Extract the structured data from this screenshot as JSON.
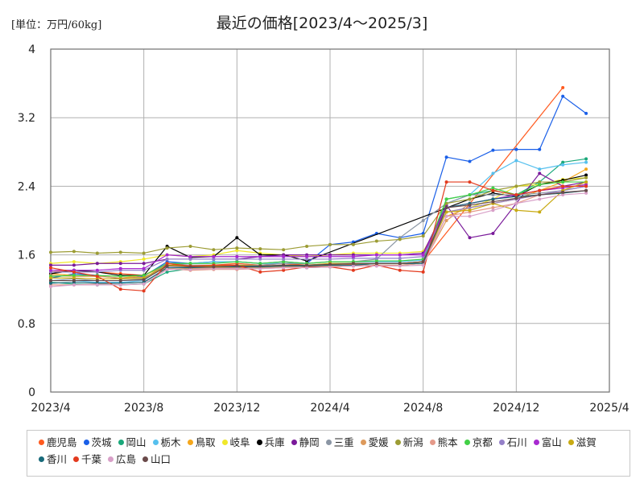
{
  "header": {
    "unit": "[単位：万円/60kg]",
    "title": "最近の価格[2023/4～2025/3]"
  },
  "chart_data": {
    "type": "line",
    "title": "最近の価格[2023/4～2025/3]",
    "unit_label": "[単位：万円/60kg]",
    "x": [
      "2023/4",
      "2023/5",
      "2023/6",
      "2023/7",
      "2023/8",
      "2023/9",
      "2023/10",
      "2023/11",
      "2023/12",
      "2024/1",
      "2024/2",
      "2024/3",
      "2024/4",
      "2024/5",
      "2024/6",
      "2024/7",
      "2024/8",
      "2024/9",
      "2024/10",
      "2024/11",
      "2024/12",
      "2025/1",
      "2025/2",
      "2025/3"
    ],
    "xticks": [
      "2023/4",
      "2023/8",
      "2023/12",
      "2024/4",
      "2024/8",
      "2024/12",
      "2025/4"
    ],
    "ylim": [
      0,
      4
    ],
    "yticks": [
      0,
      0.8,
      1.6,
      2.4,
      3.2,
      4
    ],
    "grid": true,
    "legend": "bottom",
    "series": [
      {
        "name": "鹿児島",
        "color": "#ff5a1f",
        "values": [
          1.4,
          1.42,
          1.4,
          1.38,
          1.36,
          1.5,
          1.46,
          1.48,
          1.5,
          1.48,
          1.5,
          1.48,
          1.48,
          1.49,
          1.5,
          1.5,
          1.52,
          null,
          null,
          null,
          null,
          null,
          3.55,
          null
        ]
      },
      {
        "name": "茨城",
        "color": "#1a5fe8",
        "values": [
          1.33,
          1.38,
          1.36,
          1.32,
          1.35,
          1.52,
          1.5,
          1.52,
          1.52,
          1.5,
          1.52,
          1.5,
          1.72,
          1.75,
          1.85,
          1.8,
          1.85,
          2.74,
          2.69,
          2.82,
          2.83,
          2.83,
          3.45,
          3.25
        ]
      },
      {
        "name": "岡山",
        "color": "#1aa87a",
        "values": [
          1.28,
          1.26,
          1.25,
          1.25,
          1.26,
          1.4,
          1.44,
          1.45,
          1.45,
          1.45,
          1.46,
          1.45,
          1.46,
          1.47,
          1.48,
          1.48,
          1.5,
          2.25,
          2.3,
          2.35,
          2.3,
          2.45,
          2.68,
          2.72
        ]
      },
      {
        "name": "栃木",
        "color": "#56c0ee",
        "values": [
          1.3,
          1.3,
          1.28,
          1.28,
          1.3,
          1.5,
          1.5,
          1.52,
          1.52,
          1.5,
          1.5,
          1.5,
          1.52,
          1.52,
          1.52,
          1.52,
          1.54,
          2.2,
          2.3,
          2.55,
          2.7,
          2.6,
          2.65,
          2.68
        ]
      },
      {
        "name": "鳥取",
        "color": "#f5a71c",
        "values": [
          1.38,
          1.36,
          1.35,
          1.33,
          1.36,
          1.48,
          1.46,
          1.46,
          1.46,
          1.46,
          1.47,
          1.47,
          1.48,
          1.48,
          1.5,
          1.5,
          1.52,
          2.05,
          2.15,
          2.2,
          2.25,
          2.35,
          2.45,
          2.6
        ]
      },
      {
        "name": "岐阜",
        "color": "#f0e82a",
        "values": [
          1.5,
          1.52,
          1.5,
          1.52,
          1.55,
          1.6,
          1.58,
          1.6,
          1.65,
          1.62,
          1.6,
          1.58,
          1.6,
          1.62,
          1.62,
          1.62,
          1.64,
          2.1,
          2.15,
          2.25,
          2.4,
          2.42,
          2.48,
          2.5
        ]
      },
      {
        "name": "兵庫",
        "color": "#000000",
        "values": [
          1.38,
          1.42,
          1.4,
          1.36,
          1.36,
          1.7,
          1.57,
          1.58,
          1.8,
          1.6,
          1.6,
          1.53,
          null,
          null,
          null,
          null,
          null,
          null,
          2.25,
          2.32,
          2.28,
          2.42,
          2.47,
          2.53
        ]
      },
      {
        "name": "静岡",
        "color": "#7a1a9a",
        "values": [
          1.48,
          1.48,
          1.5,
          1.5,
          1.5,
          1.55,
          1.55,
          1.55,
          1.55,
          1.58,
          1.6,
          1.6,
          1.6,
          1.6,
          1.6,
          1.6,
          1.62,
          2.18,
          1.8,
          1.85,
          2.2,
          2.55,
          2.4,
          2.45
        ]
      },
      {
        "name": "三重",
        "color": "#8b96a4",
        "values": [
          1.3,
          1.32,
          1.3,
          1.3,
          1.32,
          1.5,
          1.48,
          1.48,
          1.48,
          1.48,
          1.5,
          1.5,
          1.52,
          1.52,
          1.55,
          1.8,
          2.0,
          2.2,
          2.3,
          2.3,
          2.3,
          2.32,
          2.35,
          2.4
        ]
      },
      {
        "name": "愛媛",
        "color": "#dd9a5c",
        "values": [
          1.36,
          1.35,
          1.35,
          1.33,
          1.34,
          1.45,
          1.44,
          1.45,
          1.45,
          1.45,
          1.46,
          1.46,
          1.47,
          1.48,
          1.5,
          1.5,
          1.5,
          2.0,
          2.2,
          2.25,
          2.3,
          2.35,
          2.38,
          2.42
        ]
      },
      {
        "name": "新潟",
        "color": "#9c9c34",
        "values": [
          1.63,
          1.64,
          1.62,
          1.63,
          1.62,
          1.68,
          1.7,
          1.66,
          1.68,
          1.67,
          1.66,
          1.7,
          1.72,
          1.72,
          1.76,
          1.78,
          1.82,
          2.2,
          2.25,
          2.35,
          2.4,
          2.45,
          2.45,
          2.5
        ]
      },
      {
        "name": "熊本",
        "color": "#e59a8a",
        "values": [
          1.25,
          1.25,
          1.26,
          1.27,
          1.28,
          1.44,
          1.42,
          1.43,
          1.43,
          1.44,
          1.45,
          1.46,
          1.46,
          1.47,
          1.48,
          1.48,
          1.5,
          2.05,
          2.1,
          2.15,
          2.2,
          2.3,
          2.32,
          2.35
        ]
      },
      {
        "name": "京都",
        "color": "#42d046",
        "values": [
          1.35,
          1.36,
          1.36,
          1.35,
          1.36,
          1.5,
          1.5,
          1.5,
          1.52,
          1.5,
          1.52,
          1.5,
          1.52,
          1.52,
          1.53,
          1.53,
          1.55,
          2.25,
          2.3,
          2.38,
          2.3,
          2.42,
          2.45,
          2.45
        ]
      },
      {
        "name": "石川",
        "color": "#9480c8",
        "values": [
          1.4,
          1.4,
          1.4,
          1.42,
          1.42,
          1.55,
          1.55,
          1.55,
          1.55,
          1.55,
          1.55,
          1.55,
          1.55,
          1.56,
          1.56,
          1.56,
          1.58,
          2.1,
          2.15,
          2.2,
          2.25,
          2.3,
          2.35,
          2.4
        ]
      },
      {
        "name": "富山",
        "color": "#a82ad0",
        "values": [
          1.42,
          1.42,
          1.42,
          1.44,
          1.44,
          1.6,
          1.58,
          1.58,
          1.58,
          1.58,
          1.58,
          1.58,
          1.58,
          1.58,
          1.6,
          1.6,
          1.6,
          2.15,
          2.2,
          2.25,
          2.3,
          2.35,
          2.38,
          2.42
        ]
      },
      {
        "name": "滋賀",
        "color": "#c8aa12",
        "values": [
          1.33,
          1.33,
          1.32,
          1.32,
          1.33,
          1.48,
          1.47,
          1.47,
          1.48,
          1.47,
          1.48,
          1.48,
          1.5,
          1.5,
          1.5,
          1.5,
          1.52,
          2.1,
          2.12,
          2.2,
          2.12,
          2.1,
          2.35,
          2.45
        ]
      },
      {
        "name": "香川",
        "color": "#186a7a",
        "values": [
          1.27,
          1.28,
          1.27,
          1.27,
          1.28,
          1.45,
          1.45,
          1.46,
          1.46,
          1.46,
          1.47,
          1.47,
          1.48,
          1.48,
          1.5,
          1.5,
          1.5,
          2.15,
          2.2,
          2.25,
          2.28,
          2.3,
          2.32,
          2.35
        ]
      },
      {
        "name": "千葉",
        "color": "#e33a1e",
        "values": [
          1.45,
          1.4,
          1.35,
          1.2,
          1.18,
          1.5,
          1.47,
          1.48,
          1.48,
          1.4,
          1.42,
          1.46,
          1.46,
          1.42,
          1.48,
          1.42,
          1.4,
          2.45,
          2.45,
          2.35,
          2.3,
          2.35,
          2.4,
          2.4
        ]
      },
      {
        "name": "広島",
        "color": "#d8a0c8",
        "values": [
          1.23,
          1.25,
          1.25,
          1.25,
          1.26,
          1.43,
          1.43,
          1.44,
          1.44,
          1.44,
          1.45,
          1.45,
          1.46,
          1.47,
          1.47,
          1.47,
          1.48,
          2.05,
          2.05,
          2.12,
          2.2,
          2.25,
          2.3,
          2.32
        ]
      },
      {
        "name": "山口",
        "color": "#6a4a4a",
        "values": [
          1.3,
          1.3,
          1.3,
          1.3,
          1.31,
          1.47,
          1.46,
          1.46,
          1.47,
          1.47,
          1.48,
          1.48,
          1.49,
          1.5,
          1.5,
          1.5,
          1.52,
          2.15,
          2.18,
          2.22,
          2.26,
          2.3,
          2.33,
          2.35
        ]
      }
    ]
  }
}
